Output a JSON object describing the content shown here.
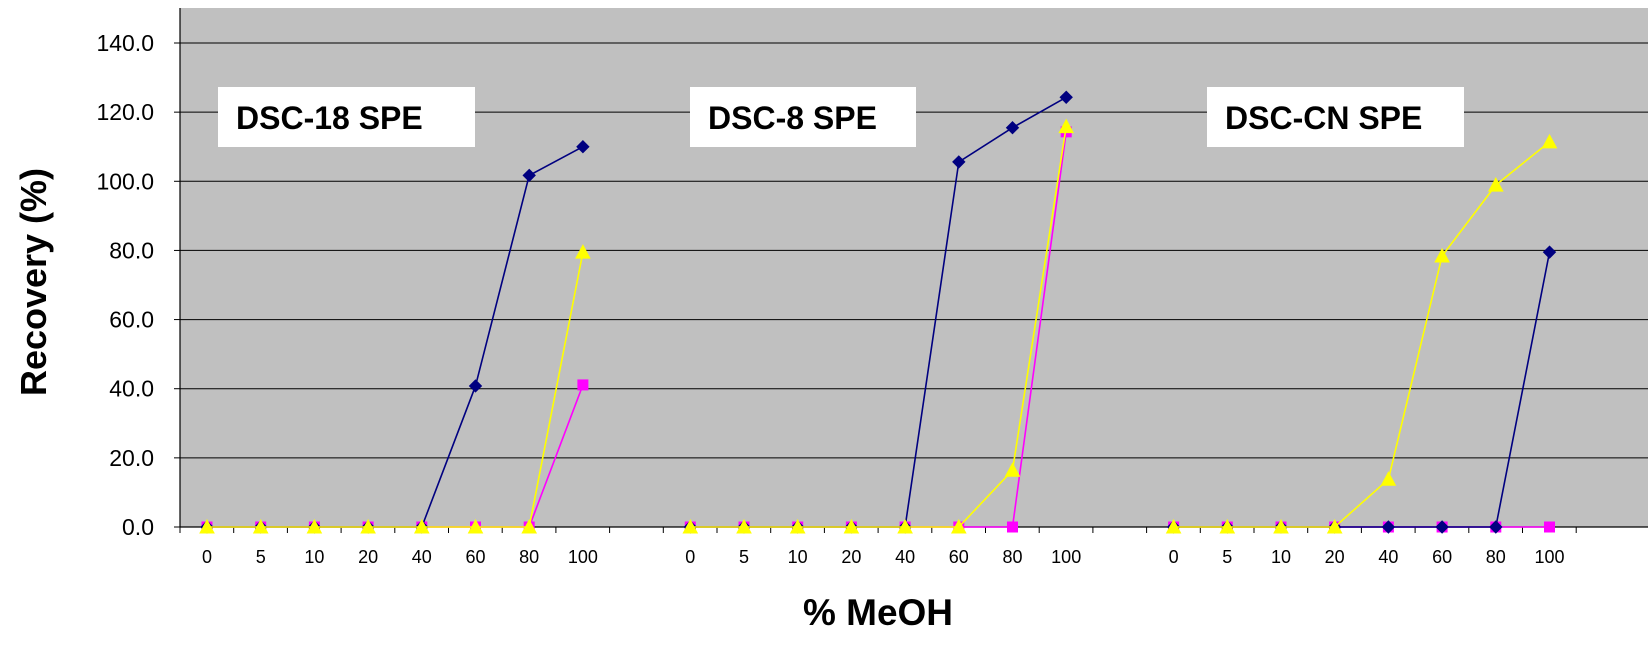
{
  "chart_data": {
    "type": "line",
    "xlabel": "% MeOH",
    "ylabel": "Recovery (%)",
    "ylim": [
      0,
      140
    ],
    "yticks": [
      "0.0",
      "20.0",
      "40.0",
      "60.0",
      "80.0",
      "100.0",
      "120.0",
      "140.0"
    ],
    "grid": true,
    "colors": {
      "plot_background": "#c0c0c0",
      "series_a": "#000080",
      "series_b": "#ff00ff",
      "series_c": "#ffff00"
    },
    "panels": [
      {
        "label": "DSC-18 SPE",
        "categories": [
          "0",
          "5",
          "10",
          "20",
          "40",
          "60",
          "80",
          "100"
        ],
        "series": [
          {
            "color": "#000080",
            "marker": "diamond",
            "values": [
              0,
              0,
              0,
              0,
              0,
              40.8,
              101.7,
              110.0
            ]
          },
          {
            "color": "#ff00ff",
            "marker": "square",
            "values": [
              0,
              0,
              0,
              0,
              0,
              0,
              0,
              41.1
            ]
          },
          {
            "color": "#ffff00",
            "marker": "triangle",
            "values": [
              0,
              0,
              0,
              0,
              0,
              0,
              0,
              79.5
            ]
          }
        ]
      },
      {
        "label": "DSC-8 SPE",
        "categories": [
          "0",
          "5",
          "10",
          "20",
          "40",
          "60",
          "80",
          "100"
        ],
        "series": [
          {
            "color": "#000080",
            "marker": "diamond",
            "values": [
              0,
              0,
              0,
              0,
              0,
              105.6,
              115.5,
              124.3
            ]
          },
          {
            "color": "#ff00ff",
            "marker": "square",
            "values": [
              0,
              0,
              0,
              0,
              0,
              0,
              0,
              114.3
            ]
          },
          {
            "color": "#ffff00",
            "marker": "triangle",
            "values": [
              0,
              0,
              0,
              0,
              0,
              0,
              16.4,
              115.8
            ]
          }
        ]
      },
      {
        "label": "DSC-CN SPE",
        "categories": [
          "0",
          "5",
          "10",
          "20",
          "40",
          "60",
          "80",
          "100"
        ],
        "series": [
          {
            "color": "#000080",
            "marker": "diamond",
            "values": [
              0,
              0,
              0,
              0,
              0,
              0,
              0,
              79.5
            ]
          },
          {
            "color": "#ff00ff",
            "marker": "square",
            "values": [
              0,
              0,
              0,
              0,
              0,
              0,
              0,
              0
            ]
          },
          {
            "color": "#ffff00",
            "marker": "triangle",
            "values": [
              0,
              0,
              0,
              0,
              13.8,
              78.4,
              98.9,
              111.4
            ]
          }
        ]
      }
    ]
  }
}
